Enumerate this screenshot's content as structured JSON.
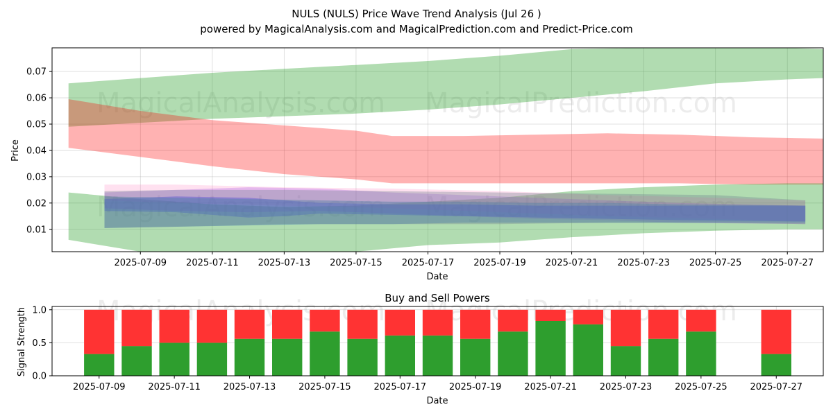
{
  "chart_data": [
    {
      "type": "area",
      "title": "NULS (NULS) Price Wave Trend Analysis (Jul 26 )",
      "subtitle": "powered by MagicalAnalysis.com and MagicalPrediction.com and Predict-Price.com",
      "xlabel": "Date",
      "ylabel": "Price",
      "ylim": [
        0.0015,
        0.079
      ],
      "xlim": [
        "2025-07-06T13:00",
        "2025-07-28"
      ],
      "grid": true,
      "x_ticks": [
        "2025-07-09",
        "2025-07-11",
        "2025-07-13",
        "2025-07-15",
        "2025-07-17",
        "2025-07-19",
        "2025-07-21",
        "2025-07-23",
        "2025-07-25",
        "2025-07-27"
      ],
      "y_ticks": [
        0.01,
        0.02,
        0.03,
        0.04,
        0.05,
        0.06,
        0.07
      ],
      "watermarks": [
        "MagicalAnalysis.com",
        "MagicalPrediction.com"
      ],
      "bands": [
        {
          "name": "green-upper",
          "color": "#2ca02c",
          "opacity": 0.37,
          "x": [
            "2025-07-07",
            "2025-07-09",
            "2025-07-11",
            "2025-07-13",
            "2025-07-15",
            "2025-07-17",
            "2025-07-19",
            "2025-07-21",
            "2025-07-23",
            "2025-07-25",
            "2025-07-27",
            "2025-07-28"
          ],
          "upper": [
            0.0655,
            0.0675,
            0.0695,
            0.071,
            0.0725,
            0.074,
            0.076,
            0.0785,
            0.079,
            0.079,
            0.079,
            0.0785
          ],
          "lower": [
            0.049,
            0.0505,
            0.052,
            0.053,
            0.054,
            0.0555,
            0.0575,
            0.06,
            0.0625,
            0.0655,
            0.067,
            0.0675
          ]
        },
        {
          "name": "red-upper",
          "color": "#ff0000",
          "opacity": 0.3,
          "x": [
            "2025-07-07",
            "2025-07-09",
            "2025-07-11",
            "2025-07-13",
            "2025-07-15",
            "2025-07-16",
            "2025-07-18",
            "2025-07-20",
            "2025-07-22",
            "2025-07-24",
            "2025-07-26",
            "2025-07-28"
          ],
          "upper": [
            0.0595,
            0.055,
            0.0515,
            0.0495,
            0.0475,
            0.0455,
            0.0455,
            0.046,
            0.0465,
            0.046,
            0.045,
            0.0445
          ],
          "lower": [
            0.041,
            0.0375,
            0.034,
            0.031,
            0.029,
            0.0275,
            0.0275,
            0.0275,
            0.0275,
            0.0275,
            0.027,
            0.027
          ]
        },
        {
          "name": "green-lower",
          "color": "#2ca02c",
          "opacity": 0.37,
          "x": [
            "2025-07-07",
            "2025-07-09",
            "2025-07-11",
            "2025-07-13",
            "2025-07-15",
            "2025-07-17",
            "2025-07-19",
            "2025-07-21",
            "2025-07-23",
            "2025-07-25",
            "2025-07-27",
            "2025-07-28"
          ],
          "upper": [
            0.024,
            0.0215,
            0.0195,
            0.0185,
            0.019,
            0.0205,
            0.022,
            0.0245,
            0.026,
            0.027,
            0.0275,
            0.0275
          ],
          "lower": [
            0.006,
            0.0015,
            0.0005,
            0.001,
            0.0015,
            0.004,
            0.005,
            0.007,
            0.0085,
            0.0095,
            0.01,
            0.01
          ]
        },
        {
          "name": "pink",
          "color": "#ff69b4",
          "opacity": 0.2,
          "x": [
            "2025-07-08",
            "2025-07-10",
            "2025-07-13",
            "2025-07-16",
            "2025-07-19",
            "2025-07-22",
            "2025-07-25",
            "2025-07-27.5"
          ],
          "upper": [
            0.027,
            0.027,
            0.026,
            0.0255,
            0.0245,
            0.023,
            0.022,
            0.021
          ],
          "lower": [
            0.021,
            0.02,
            0.019,
            0.018,
            0.0165,
            0.015,
            0.014,
            0.013
          ]
        },
        {
          "name": "purple",
          "color": "#8a2be2",
          "opacity": 0.22,
          "x": [
            "2025-07-08",
            "2025-07-10",
            "2025-07-12",
            "2025-07-14",
            "2025-07-16",
            "2025-07-18",
            "2025-07-20",
            "2025-07-22",
            "2025-07-24",
            "2025-07-27.5"
          ],
          "upper": [
            0.024,
            0.025,
            0.026,
            0.0255,
            0.024,
            0.023,
            0.022,
            0.021,
            0.02,
            0.019
          ],
          "lower": [
            0.018,
            0.017,
            0.0165,
            0.017,
            0.016,
            0.015,
            0.014,
            0.0135,
            0.0125,
            0.012
          ]
        },
        {
          "name": "blue",
          "color": "#0000ff",
          "opacity": 0.3,
          "x": [
            "2025-07-08",
            "2025-07-10",
            "2025-07-12",
            "2025-07-13",
            "2025-07-14",
            "2025-07-16",
            "2025-07-18",
            "2025-07-20",
            "2025-07-22",
            "2025-07-24",
            "2025-07-27.5"
          ],
          "upper": [
            0.0215,
            0.0225,
            0.022,
            0.021,
            0.02,
            0.0195,
            0.0195,
            0.019,
            0.019,
            0.019,
            0.019
          ],
          "lower": [
            0.017,
            0.0165,
            0.0145,
            0.015,
            0.016,
            0.0155,
            0.015,
            0.0145,
            0.014,
            0.0135,
            0.013
          ]
        },
        {
          "name": "steel",
          "color": "#4682b4",
          "opacity": 0.45,
          "x": [
            "2025-07-08",
            "2025-07-10",
            "2025-07-12",
            "2025-07-14",
            "2025-07-16",
            "2025-07-18",
            "2025-07-20",
            "2025-07-22",
            "2025-07-24",
            "2025-07-27.5"
          ],
          "upper": [
            0.0225,
            0.022,
            0.0215,
            0.021,
            0.0205,
            0.0205,
            0.02,
            0.02,
            0.0195,
            0.019
          ],
          "lower": [
            0.0105,
            0.011,
            0.0115,
            0.012,
            0.012,
            0.0125,
            0.0125,
            0.0125,
            0.0125,
            0.0125
          ]
        },
        {
          "name": "grey",
          "color": "#708090",
          "opacity": 0.35,
          "x": [
            "2025-07-08",
            "2025-07-10",
            "2025-07-13",
            "2025-07-16",
            "2025-07-19",
            "2025-07-22",
            "2025-07-25",
            "2025-07-27.5"
          ],
          "upper": [
            0.0245,
            0.025,
            0.025,
            0.0245,
            0.024,
            0.0235,
            0.023,
            0.021
          ],
          "lower": [
            0.0105,
            0.011,
            0.012,
            0.012,
            0.012,
            0.0125,
            0.0125,
            0.012
          ]
        }
      ]
    },
    {
      "type": "bar",
      "title": "Buy and Sell Powers",
      "xlabel": "Date",
      "ylabel": "Signal Strength",
      "ylim": [
        0,
        1.05
      ],
      "xlim": [
        "2025-07-07T18:00",
        "2025-07-28T06:00"
      ],
      "grid": true,
      "x_ticks": [
        "2025-07-09",
        "2025-07-11",
        "2025-07-13",
        "2025-07-15",
        "2025-07-17",
        "2025-07-19",
        "2025-07-21",
        "2025-07-23",
        "2025-07-25",
        "2025-07-27"
      ],
      "y_ticks": [
        0.0,
        0.5,
        1.0
      ],
      "y_tick_labels": [
        "0.0",
        "0.5",
        "1.0"
      ],
      "watermarks": [
        "MagicalAnalysis.com",
        "MagicalPrediction.com"
      ],
      "buy_color": "#2e9e2e",
      "sell_color": "#ff3333",
      "categories": [
        "2025-07-09",
        "2025-07-10",
        "2025-07-11",
        "2025-07-12",
        "2025-07-13",
        "2025-07-14",
        "2025-07-15",
        "2025-07-16",
        "2025-07-17",
        "2025-07-18",
        "2025-07-19",
        "2025-07-20",
        "2025-07-21",
        "2025-07-22",
        "2025-07-23",
        "2025-07-24",
        "2025-07-25",
        "2025-07-27"
      ],
      "series": [
        {
          "name": "Buy",
          "values": [
            0.33,
            0.45,
            0.5,
            0.5,
            0.56,
            0.56,
            0.67,
            0.56,
            0.61,
            0.61,
            0.56,
            0.67,
            0.83,
            0.78,
            0.45,
            0.56,
            0.67,
            0.33
          ]
        },
        {
          "name": "Sell",
          "values": [
            0.67,
            0.55,
            0.5,
            0.5,
            0.44,
            0.44,
            0.33,
            0.44,
            0.39,
            0.39,
            0.44,
            0.33,
            0.17,
            0.22,
            0.55,
            0.44,
            0.33,
            0.67
          ]
        }
      ]
    }
  ]
}
